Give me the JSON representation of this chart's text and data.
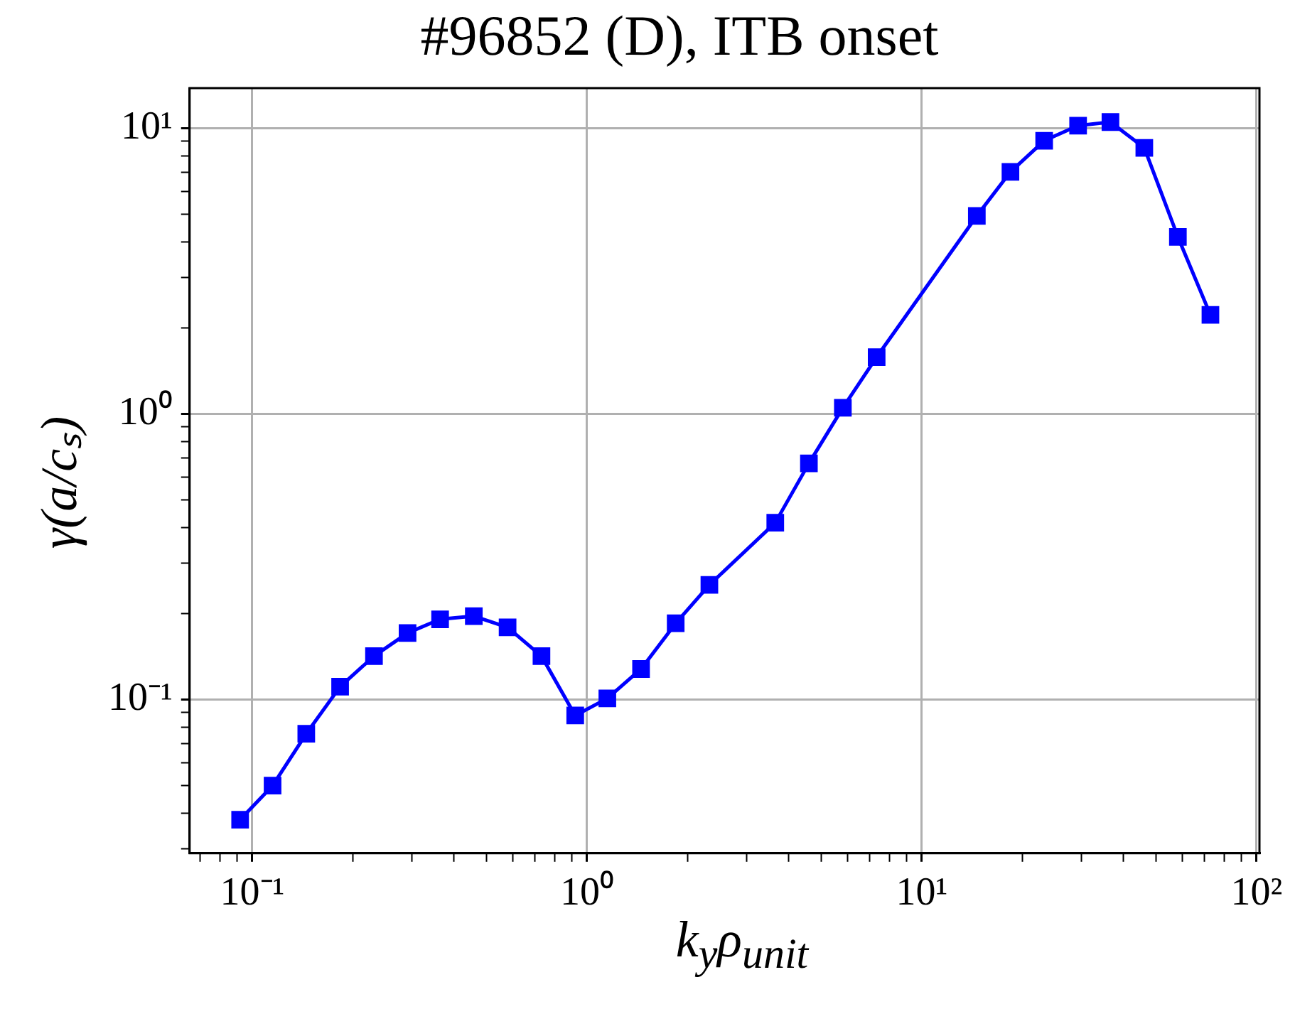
{
  "chart_data": {
    "type": "line",
    "title": "#96852 (D), ITB onset",
    "xlabel": "k$_{y}$ρ$_{unit}$",
    "ylabel": "γ(a/cₛ)",
    "x": [
      0.092,
      0.115,
      0.145,
      0.183,
      0.231,
      0.291,
      0.364,
      0.459,
      0.579,
      0.731,
      0.922,
      1.15,
      1.45,
      1.84,
      2.32,
      3.65,
      4.6,
      5.81,
      7.33,
      14.6,
      18.4,
      23.2,
      29.3,
      36.6,
      46.2,
      58.2,
      72.8
    ],
    "series": [
      {
        "color": "#0000ff",
        "values": [
          0.038,
          0.05,
          0.076,
          0.111,
          0.142,
          0.171,
          0.191,
          0.196,
          0.179,
          0.142,
          0.088,
          0.101,
          0.128,
          0.185,
          0.252,
          0.416,
          0.671,
          1.05,
          1.58,
          4.93,
          7.03,
          9.03,
          10.2,
          10.5,
          8.53,
          4.16,
          2.22
        ]
      }
    ],
    "log": "xy",
    "xlim": [
      0.065,
      102
    ],
    "ylim": [
      0.029,
      13.8
    ],
    "xticks": [
      {
        "value": 0.07,
        "label": null
      },
      {
        "value": 0.08,
        "label": null
      },
      {
        "value": 0.09,
        "label": null
      },
      {
        "value": 0.1,
        "label": "10⁻¹"
      },
      {
        "value": 0.2,
        "label": null
      },
      {
        "value": 0.3,
        "label": null
      },
      {
        "value": 0.4,
        "label": null
      },
      {
        "value": 0.5,
        "label": null
      },
      {
        "value": 0.6,
        "label": null
      },
      {
        "value": 0.7,
        "label": null
      },
      {
        "value": 0.8,
        "label": null
      },
      {
        "value": 0.9,
        "label": null
      },
      {
        "value": 1,
        "label": "10⁰"
      },
      {
        "value": 2,
        "label": null
      },
      {
        "value": 3,
        "label": null
      },
      {
        "value": 4,
        "label": null
      },
      {
        "value": 5,
        "label": null
      },
      {
        "value": 6,
        "label": null
      },
      {
        "value": 7,
        "label": null
      },
      {
        "value": 8,
        "label": null
      },
      {
        "value": 9,
        "label": null
      },
      {
        "value": 10,
        "label": "10¹"
      },
      {
        "value": 20,
        "label": null
      },
      {
        "value": 30,
        "label": null
      },
      {
        "value": 40,
        "label": null
      },
      {
        "value": 50,
        "label": null
      },
      {
        "value": 60,
        "label": null
      },
      {
        "value": 70,
        "label": null
      },
      {
        "value": 80,
        "label": null
      },
      {
        "value": 90,
        "label": null
      },
      {
        "value": 100,
        "label": "10²"
      }
    ],
    "yticks": [
      {
        "value": 0.03,
        "label": null
      },
      {
        "value": 0.04,
        "label": null
      },
      {
        "value": 0.05,
        "label": null
      },
      {
        "value": 0.06,
        "label": null
      },
      {
        "value": 0.07,
        "label": null
      },
      {
        "value": 0.08,
        "label": null
      },
      {
        "value": 0.09,
        "label": null
      },
      {
        "value": 0.1,
        "label": "10⁻¹"
      },
      {
        "value": 0.2,
        "label": null
      },
      {
        "value": 0.3,
        "label": null
      },
      {
        "value": 0.4,
        "label": null
      },
      {
        "value": 0.5,
        "label": null
      },
      {
        "value": 0.6,
        "label": null
      },
      {
        "value": 0.7,
        "label": null
      },
      {
        "value": 0.8,
        "label": null
      },
      {
        "value": 0.9,
        "label": null
      },
      {
        "value": 1,
        "label": "10⁰"
      },
      {
        "value": 2,
        "label": null
      },
      {
        "value": 3,
        "label": null
      },
      {
        "value": 4,
        "label": null
      },
      {
        "value": 5,
        "label": null
      },
      {
        "value": 6,
        "label": null
      },
      {
        "value": 7,
        "label": null
      },
      {
        "value": 8,
        "label": null
      },
      {
        "value": 9,
        "label": null
      },
      {
        "value": 10,
        "label": "10¹"
      }
    ],
    "grid": true,
    "marker": "square",
    "line_style": "solid",
    "legend": false
  }
}
